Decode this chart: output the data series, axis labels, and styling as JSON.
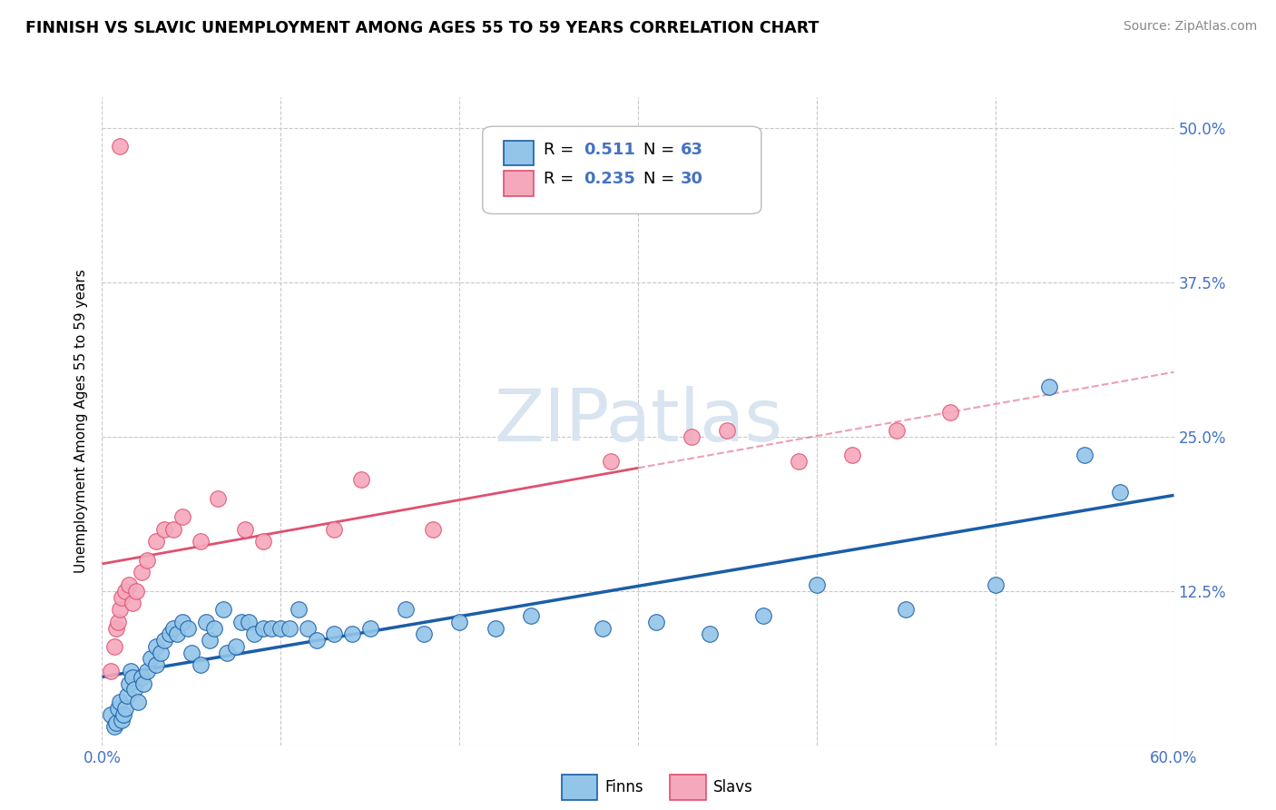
{
  "title": "FINNISH VS SLAVIC UNEMPLOYMENT AMONG AGES 55 TO 59 YEARS CORRELATION CHART",
  "source": "Source: ZipAtlas.com",
  "ylabel": "Unemployment Among Ages 55 to 59 years",
  "xlim": [
    0.0,
    0.6
  ],
  "ylim": [
    0.0,
    0.525
  ],
  "xticks": [
    0.0,
    0.1,
    0.2,
    0.3,
    0.4,
    0.5,
    0.6
  ],
  "yticks": [
    0.0,
    0.125,
    0.25,
    0.375,
    0.5
  ],
  "ytick_labels_right": [
    "",
    "12.5%",
    "25.0%",
    "37.5%",
    "50.0%"
  ],
  "xtick_labels": [
    "0.0%",
    "",
    "",
    "",
    "",
    "",
    "60.0%"
  ],
  "finnish_R": 0.511,
  "finnish_N": 63,
  "slavic_R": 0.235,
  "slavic_N": 30,
  "finnish_color": "#92C5E8",
  "slavic_color": "#F5A8BC",
  "trendline_finnish_color": "#1A5EA8",
  "trendline_slavic_color": "#E05070",
  "watermark_color": "#D8E4F0",
  "background_color": "#ffffff",
  "grid_color": "#C8C8C8",
  "finnish_x": [
    0.005,
    0.007,
    0.008,
    0.009,
    0.01,
    0.011,
    0.012,
    0.013,
    0.014,
    0.015,
    0.016,
    0.017,
    0.018,
    0.02,
    0.022,
    0.023,
    0.025,
    0.027,
    0.03,
    0.03,
    0.033,
    0.035,
    0.038,
    0.04,
    0.042,
    0.045,
    0.048,
    0.05,
    0.055,
    0.058,
    0.06,
    0.063,
    0.068,
    0.07,
    0.075,
    0.078,
    0.082,
    0.085,
    0.09,
    0.095,
    0.1,
    0.105,
    0.11,
    0.115,
    0.12,
    0.13,
    0.14,
    0.15,
    0.17,
    0.18,
    0.2,
    0.22,
    0.24,
    0.28,
    0.31,
    0.34,
    0.37,
    0.4,
    0.45,
    0.5,
    0.53,
    0.55,
    0.57
  ],
  "finnish_y": [
    0.025,
    0.015,
    0.018,
    0.03,
    0.035,
    0.02,
    0.025,
    0.03,
    0.04,
    0.05,
    0.06,
    0.055,
    0.045,
    0.035,
    0.055,
    0.05,
    0.06,
    0.07,
    0.065,
    0.08,
    0.075,
    0.085,
    0.09,
    0.095,
    0.09,
    0.1,
    0.095,
    0.075,
    0.065,
    0.1,
    0.085,
    0.095,
    0.11,
    0.075,
    0.08,
    0.1,
    0.1,
    0.09,
    0.095,
    0.095,
    0.095,
    0.095,
    0.11,
    0.095,
    0.085,
    0.09,
    0.09,
    0.095,
    0.11,
    0.09,
    0.1,
    0.095,
    0.105,
    0.095,
    0.1,
    0.09,
    0.105,
    0.13,
    0.11,
    0.13,
    0.29,
    0.235,
    0.205
  ],
  "slavic_x": [
    0.005,
    0.007,
    0.008,
    0.009,
    0.01,
    0.011,
    0.013,
    0.015,
    0.017,
    0.019,
    0.022,
    0.025,
    0.03,
    0.035,
    0.04,
    0.045,
    0.055,
    0.065,
    0.08,
    0.09,
    0.13,
    0.145,
    0.185,
    0.285,
    0.33,
    0.35,
    0.39,
    0.42,
    0.445,
    0.475
  ],
  "slavic_y": [
    0.06,
    0.08,
    0.095,
    0.1,
    0.11,
    0.12,
    0.125,
    0.13,
    0.115,
    0.125,
    0.14,
    0.15,
    0.165,
    0.175,
    0.175,
    0.185,
    0.165,
    0.2,
    0.175,
    0.165,
    0.175,
    0.215,
    0.175,
    0.23,
    0.25,
    0.255,
    0.23,
    0.235,
    0.255,
    0.27
  ],
  "slavic_outlier_x": [
    0.01
  ],
  "slavic_outlier_y": [
    0.485
  ],
  "slavic_line_solid_end": 0.3,
  "trendline_finn_x0": 0.0,
  "trendline_finn_x1": 0.6,
  "trendline_slav_x0": 0.0,
  "trendline_slav_x1": 0.6
}
